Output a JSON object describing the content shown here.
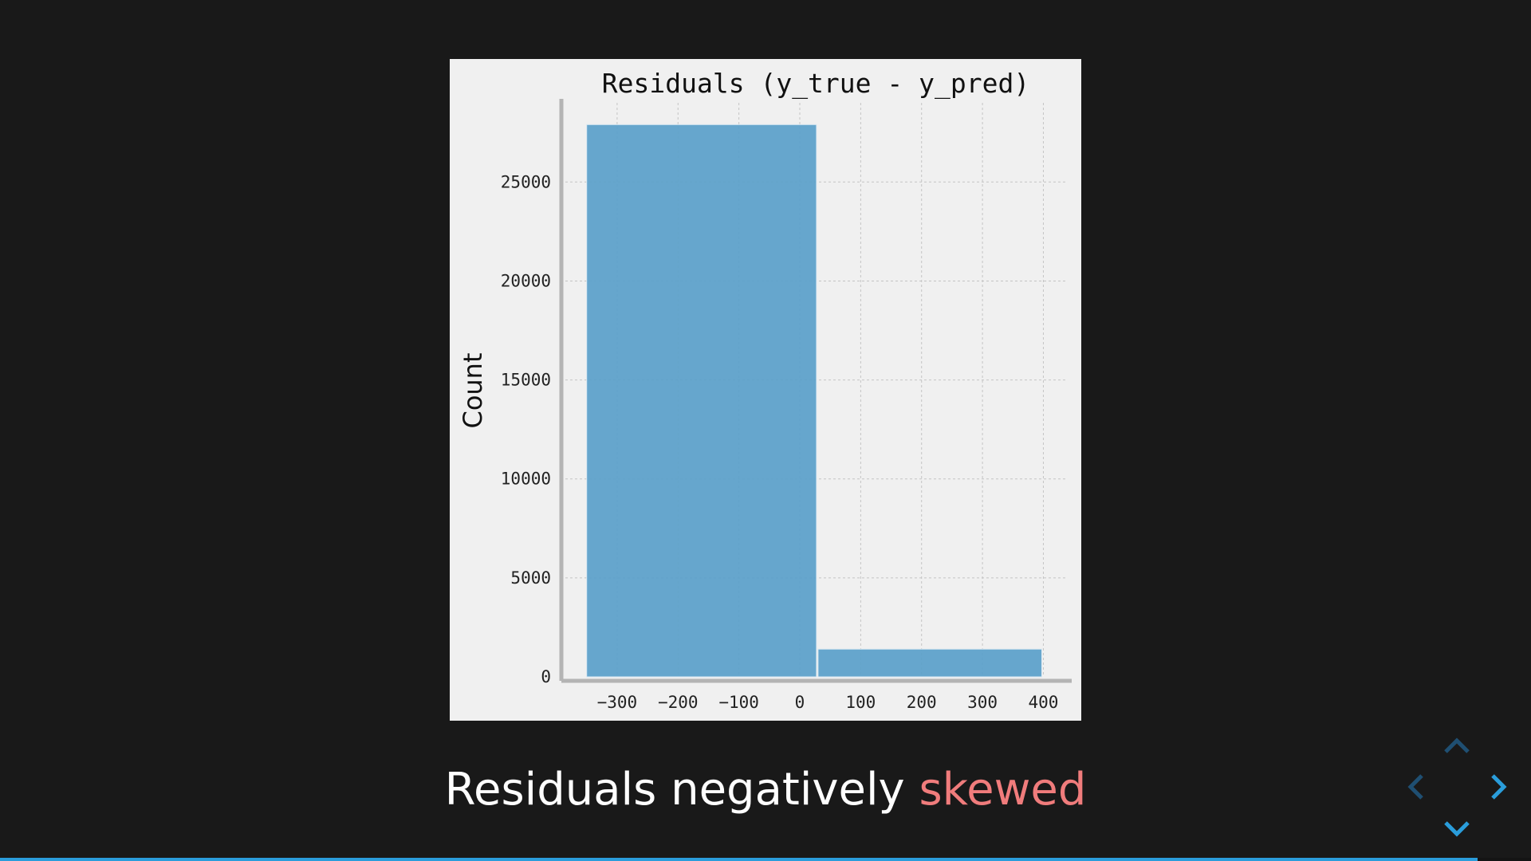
{
  "caption": {
    "prefix": "Residuals negatively ",
    "highlight": "skewed"
  },
  "progress": {
    "fraction": 0.965
  },
  "controls": {
    "up_icon": "chevron-up-icon",
    "down_icon": "chevron-down-icon",
    "left_icon": "chevron-left-icon",
    "right_icon": "chevron-right-icon",
    "active_color": "#2a9ddb",
    "inactive_color": "#1f4f72"
  },
  "chart_data": {
    "type": "bar",
    "title": "Residuals (y_true - y_pred)",
    "xlabel": "",
    "ylabel": "Count",
    "xlim": [
      -385,
      440
    ],
    "ylim": [
      0,
      29000
    ],
    "x_ticks": [
      -300,
      -200,
      -100,
      0,
      100,
      200,
      300,
      400
    ],
    "y_ticks": [
      0,
      5000,
      10000,
      15000,
      20000,
      25000
    ],
    "grid": true,
    "bar_color": "#5a9fca",
    "bins": [
      {
        "x0": -350,
        "x1": 30,
        "count": 27900
      },
      {
        "x0": 30,
        "x1": 400,
        "count": 1400
      }
    ]
  }
}
